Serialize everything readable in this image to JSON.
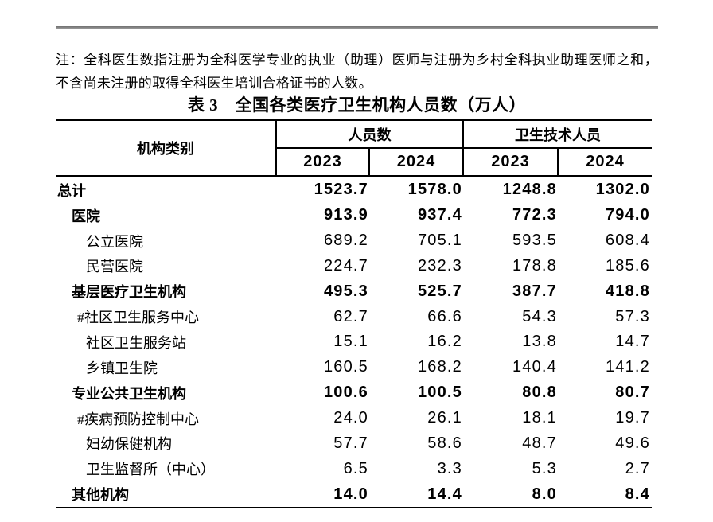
{
  "note": {
    "text": "注：全科医生数指注册为全科医学专业的执业（助理）医师与注册为乡村全科执业助理医师之和，不含尚未注册的取得全科医生培训合格证书的人数。"
  },
  "table": {
    "title": "表 3　全国各类医疗卫生机构人员数（万人）",
    "header": {
      "col0": "机构类别",
      "groups": [
        {
          "label": "人员数",
          "years": [
            "2023",
            "2024"
          ]
        },
        {
          "label": "卫生技术人员",
          "years": [
            "2023",
            "2024"
          ]
        }
      ]
    },
    "rows": [
      {
        "label": "总计",
        "bold": true,
        "indent": 0,
        "hash": false,
        "values": [
          "1523.7",
          "1578.0",
          "1248.8",
          "1302.0"
        ]
      },
      {
        "label": "医院",
        "bold": true,
        "indent": 1,
        "hash": false,
        "values": [
          "913.9",
          "937.4",
          "772.3",
          "794.0"
        ]
      },
      {
        "label": "公立医院",
        "bold": false,
        "indent": 2,
        "hash": false,
        "values": [
          "689.2",
          "705.1",
          "593.5",
          "608.4"
        ]
      },
      {
        "label": "民营医院",
        "bold": false,
        "indent": 2,
        "hash": false,
        "values": [
          "224.7",
          "232.3",
          "178.8",
          "185.6"
        ]
      },
      {
        "label": "基层医疗卫生机构",
        "bold": true,
        "indent": 1,
        "hash": false,
        "values": [
          "495.3",
          "525.7",
          "387.7",
          "418.8"
        ]
      },
      {
        "label": "#社区卫生服务中心",
        "bold": false,
        "indent": 2,
        "hash": true,
        "values": [
          "62.7",
          "66.6",
          "54.3",
          "57.3"
        ]
      },
      {
        "label": "社区卫生服务站",
        "bold": false,
        "indent": 2,
        "hash": false,
        "values": [
          "15.1",
          "16.2",
          "13.8",
          "14.7"
        ]
      },
      {
        "label": "乡镇卫生院",
        "bold": false,
        "indent": 2,
        "hash": false,
        "values": [
          "160.5",
          "168.2",
          "140.4",
          "141.2"
        ]
      },
      {
        "label": "专业公共卫生机构",
        "bold": true,
        "indent": 1,
        "hash": false,
        "values": [
          "100.6",
          "100.5",
          "80.8",
          "80.7"
        ]
      },
      {
        "label": "#疾病预防控制中心",
        "bold": false,
        "indent": 2,
        "hash": true,
        "values": [
          "24.0",
          "26.1",
          "18.1",
          "19.7"
        ]
      },
      {
        "label": "妇幼保健机构",
        "bold": false,
        "indent": 2,
        "hash": false,
        "values": [
          "57.7",
          "58.6",
          "48.7",
          "49.6"
        ]
      },
      {
        "label": "卫生监督所（中心）",
        "bold": false,
        "indent": 2,
        "hash": false,
        "values": [
          "6.5",
          "3.3",
          "5.3",
          "2.7"
        ]
      },
      {
        "label": "其他机构",
        "bold": true,
        "indent": 1,
        "hash": false,
        "values": [
          "14.0",
          "14.4",
          "8.0",
          "8.4"
        ]
      }
    ]
  }
}
